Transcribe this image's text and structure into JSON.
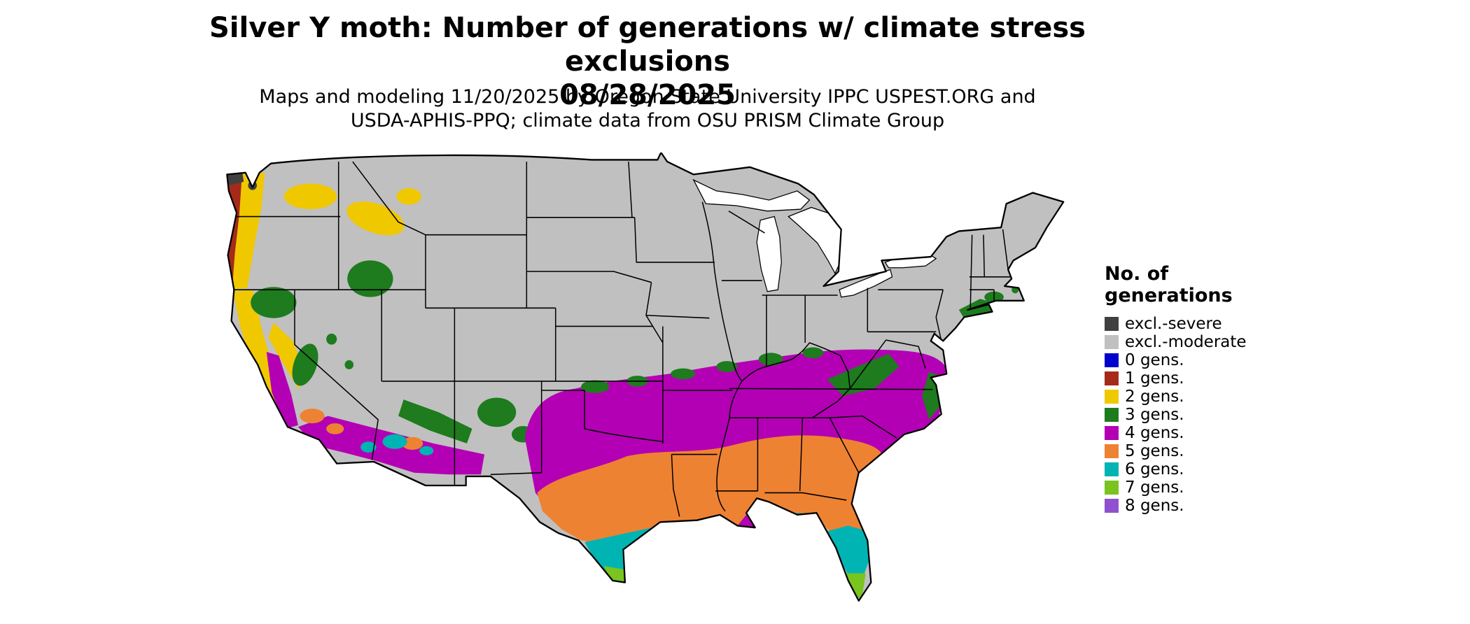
{
  "header": {
    "title": "Silver Y moth: Number of generations w/ climate stress exclusions",
    "date": "08/28/2025",
    "subtitle_line1": "Maps and modeling 11/20/2025 by Oregon State University IPPC USPEST.ORG and",
    "subtitle_line2": "USDA-APHIS-PPQ; climate data from OSU PRISM Climate Group"
  },
  "legend": {
    "title_line1": "No. of",
    "title_line2": "generations",
    "items": [
      {
        "key": "severe",
        "label": "excl.-severe",
        "color": "#404040"
      },
      {
        "key": "moderate",
        "label": "excl.-moderate",
        "color": "#c0c0c0"
      },
      {
        "key": "g0",
        "label": "0 gens.",
        "color": "#0000cd"
      },
      {
        "key": "g1",
        "label": "1 gens.",
        "color": "#a52a1a"
      },
      {
        "key": "g2",
        "label": "2 gens.",
        "color": "#f0c800"
      },
      {
        "key": "g3",
        "label": "3 gens.",
        "color": "#1e7b1e"
      },
      {
        "key": "g4",
        "label": "4 gens.",
        "color": "#b400b4"
      },
      {
        "key": "g5",
        "label": "5 gens.",
        "color": "#ee8233"
      },
      {
        "key": "g6",
        "label": "6 gens.",
        "color": "#00b4b4"
      },
      {
        "key": "g7",
        "label": "7 gens.",
        "color": "#79c41e"
      },
      {
        "key": "g8",
        "label": "8 gens.",
        "color": "#9050d0"
      }
    ]
  },
  "map": {
    "type": "choropleth",
    "subject": "Continental United States",
    "regions_summary": [
      {
        "area": "Northern and interior US (Rockies, Plains, Midwest, Northeast)",
        "value": "excl.-moderate"
      },
      {
        "area": "Olympic Peninsula / NW Washington coast tips",
        "value": "excl.-severe"
      },
      {
        "area": "Washington and Oregon coastal strip",
        "value": "1 gens."
      },
      {
        "area": "Pacific Northwest valleys, Columbia Basin fringe, N Idaho / W Montana, California coast ranges and Sierra foothills",
        "value": "2 gens."
      },
      {
        "area": "S Oregon, central Idaho, Sierra Nevada, Mogollon Rim Arizona, New Mexico highlands, fringe north of 4-gen band, Appalachians (KY/WV/VA), New Jersey and coastal Northeast, coastal Virginia",
        "value": "3 gens."
      },
      {
        "area": "California Central Valley and S California, S Arizona / S New Mexico deserts, band from west Texas across Oklahoma, Arkansas, Tennessee and Kentucky to Virginia / Maryland",
        "value": "4 gens."
      },
      {
        "area": "Central and east Texas, Louisiana, Mississippi, Alabama, Georgia, South Carolina, north Florida",
        "value": "5 gens."
      },
      {
        "area": "South Texas, Gulf shoreline strip, central Florida, SW Arizona / SE California low deserts",
        "value": "6 gens."
      },
      {
        "area": "Lower Rio Grande Valley tip of Texas, south Florida",
        "value": "7 gens."
      }
    ]
  }
}
